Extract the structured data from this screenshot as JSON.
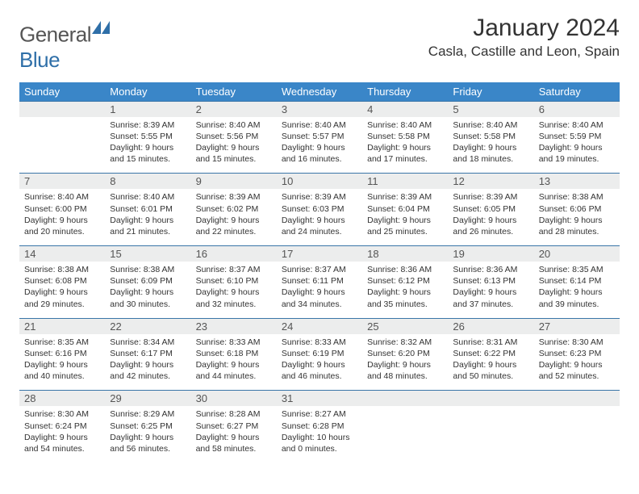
{
  "brand": {
    "part1": "General",
    "part2": "Blue",
    "logo_color": "#2f6fa8"
  },
  "header": {
    "month_title": "January 2024",
    "location": "Casla, Castille and Leon, Spain"
  },
  "colors": {
    "dow_bg": "#3a86c8",
    "dow_text": "#ffffff",
    "daynum_bg": "#eceded",
    "row_divider": "#3a76a8",
    "text": "#333333"
  },
  "days_of_week": [
    "Sunday",
    "Monday",
    "Tuesday",
    "Wednesday",
    "Thursday",
    "Friday",
    "Saturday"
  ],
  "weeks": [
    {
      "nums": [
        "",
        "1",
        "2",
        "3",
        "4",
        "5",
        "6"
      ],
      "cells": [
        null,
        {
          "sunrise": "Sunrise: 8:39 AM",
          "sunset": "Sunset: 5:55 PM",
          "dl1": "Daylight: 9 hours",
          "dl2": "and 15 minutes."
        },
        {
          "sunrise": "Sunrise: 8:40 AM",
          "sunset": "Sunset: 5:56 PM",
          "dl1": "Daylight: 9 hours",
          "dl2": "and 15 minutes."
        },
        {
          "sunrise": "Sunrise: 8:40 AM",
          "sunset": "Sunset: 5:57 PM",
          "dl1": "Daylight: 9 hours",
          "dl2": "and 16 minutes."
        },
        {
          "sunrise": "Sunrise: 8:40 AM",
          "sunset": "Sunset: 5:58 PM",
          "dl1": "Daylight: 9 hours",
          "dl2": "and 17 minutes."
        },
        {
          "sunrise": "Sunrise: 8:40 AM",
          "sunset": "Sunset: 5:58 PM",
          "dl1": "Daylight: 9 hours",
          "dl2": "and 18 minutes."
        },
        {
          "sunrise": "Sunrise: 8:40 AM",
          "sunset": "Sunset: 5:59 PM",
          "dl1": "Daylight: 9 hours",
          "dl2": "and 19 minutes."
        }
      ]
    },
    {
      "nums": [
        "7",
        "8",
        "9",
        "10",
        "11",
        "12",
        "13"
      ],
      "cells": [
        {
          "sunrise": "Sunrise: 8:40 AM",
          "sunset": "Sunset: 6:00 PM",
          "dl1": "Daylight: 9 hours",
          "dl2": "and 20 minutes."
        },
        {
          "sunrise": "Sunrise: 8:40 AM",
          "sunset": "Sunset: 6:01 PM",
          "dl1": "Daylight: 9 hours",
          "dl2": "and 21 minutes."
        },
        {
          "sunrise": "Sunrise: 8:39 AM",
          "sunset": "Sunset: 6:02 PM",
          "dl1": "Daylight: 9 hours",
          "dl2": "and 22 minutes."
        },
        {
          "sunrise": "Sunrise: 8:39 AM",
          "sunset": "Sunset: 6:03 PM",
          "dl1": "Daylight: 9 hours",
          "dl2": "and 24 minutes."
        },
        {
          "sunrise": "Sunrise: 8:39 AM",
          "sunset": "Sunset: 6:04 PM",
          "dl1": "Daylight: 9 hours",
          "dl2": "and 25 minutes."
        },
        {
          "sunrise": "Sunrise: 8:39 AM",
          "sunset": "Sunset: 6:05 PM",
          "dl1": "Daylight: 9 hours",
          "dl2": "and 26 minutes."
        },
        {
          "sunrise": "Sunrise: 8:38 AM",
          "sunset": "Sunset: 6:06 PM",
          "dl1": "Daylight: 9 hours",
          "dl2": "and 28 minutes."
        }
      ]
    },
    {
      "nums": [
        "14",
        "15",
        "16",
        "17",
        "18",
        "19",
        "20"
      ],
      "cells": [
        {
          "sunrise": "Sunrise: 8:38 AM",
          "sunset": "Sunset: 6:08 PM",
          "dl1": "Daylight: 9 hours",
          "dl2": "and 29 minutes."
        },
        {
          "sunrise": "Sunrise: 8:38 AM",
          "sunset": "Sunset: 6:09 PM",
          "dl1": "Daylight: 9 hours",
          "dl2": "and 30 minutes."
        },
        {
          "sunrise": "Sunrise: 8:37 AM",
          "sunset": "Sunset: 6:10 PM",
          "dl1": "Daylight: 9 hours",
          "dl2": "and 32 minutes."
        },
        {
          "sunrise": "Sunrise: 8:37 AM",
          "sunset": "Sunset: 6:11 PM",
          "dl1": "Daylight: 9 hours",
          "dl2": "and 34 minutes."
        },
        {
          "sunrise": "Sunrise: 8:36 AM",
          "sunset": "Sunset: 6:12 PM",
          "dl1": "Daylight: 9 hours",
          "dl2": "and 35 minutes."
        },
        {
          "sunrise": "Sunrise: 8:36 AM",
          "sunset": "Sunset: 6:13 PM",
          "dl1": "Daylight: 9 hours",
          "dl2": "and 37 minutes."
        },
        {
          "sunrise": "Sunrise: 8:35 AM",
          "sunset": "Sunset: 6:14 PM",
          "dl1": "Daylight: 9 hours",
          "dl2": "and 39 minutes."
        }
      ]
    },
    {
      "nums": [
        "21",
        "22",
        "23",
        "24",
        "25",
        "26",
        "27"
      ],
      "cells": [
        {
          "sunrise": "Sunrise: 8:35 AM",
          "sunset": "Sunset: 6:16 PM",
          "dl1": "Daylight: 9 hours",
          "dl2": "and 40 minutes."
        },
        {
          "sunrise": "Sunrise: 8:34 AM",
          "sunset": "Sunset: 6:17 PM",
          "dl1": "Daylight: 9 hours",
          "dl2": "and 42 minutes."
        },
        {
          "sunrise": "Sunrise: 8:33 AM",
          "sunset": "Sunset: 6:18 PM",
          "dl1": "Daylight: 9 hours",
          "dl2": "and 44 minutes."
        },
        {
          "sunrise": "Sunrise: 8:33 AM",
          "sunset": "Sunset: 6:19 PM",
          "dl1": "Daylight: 9 hours",
          "dl2": "and 46 minutes."
        },
        {
          "sunrise": "Sunrise: 8:32 AM",
          "sunset": "Sunset: 6:20 PM",
          "dl1": "Daylight: 9 hours",
          "dl2": "and 48 minutes."
        },
        {
          "sunrise": "Sunrise: 8:31 AM",
          "sunset": "Sunset: 6:22 PM",
          "dl1": "Daylight: 9 hours",
          "dl2": "and 50 minutes."
        },
        {
          "sunrise": "Sunrise: 8:30 AM",
          "sunset": "Sunset: 6:23 PM",
          "dl1": "Daylight: 9 hours",
          "dl2": "and 52 minutes."
        }
      ]
    },
    {
      "nums": [
        "28",
        "29",
        "30",
        "31",
        "",
        "",
        ""
      ],
      "cells": [
        {
          "sunrise": "Sunrise: 8:30 AM",
          "sunset": "Sunset: 6:24 PM",
          "dl1": "Daylight: 9 hours",
          "dl2": "and 54 minutes."
        },
        {
          "sunrise": "Sunrise: 8:29 AM",
          "sunset": "Sunset: 6:25 PM",
          "dl1": "Daylight: 9 hours",
          "dl2": "and 56 minutes."
        },
        {
          "sunrise": "Sunrise: 8:28 AM",
          "sunset": "Sunset: 6:27 PM",
          "dl1": "Daylight: 9 hours",
          "dl2": "and 58 minutes."
        },
        {
          "sunrise": "Sunrise: 8:27 AM",
          "sunset": "Sunset: 6:28 PM",
          "dl1": "Daylight: 10 hours",
          "dl2": "and 0 minutes."
        },
        null,
        null,
        null
      ]
    }
  ]
}
